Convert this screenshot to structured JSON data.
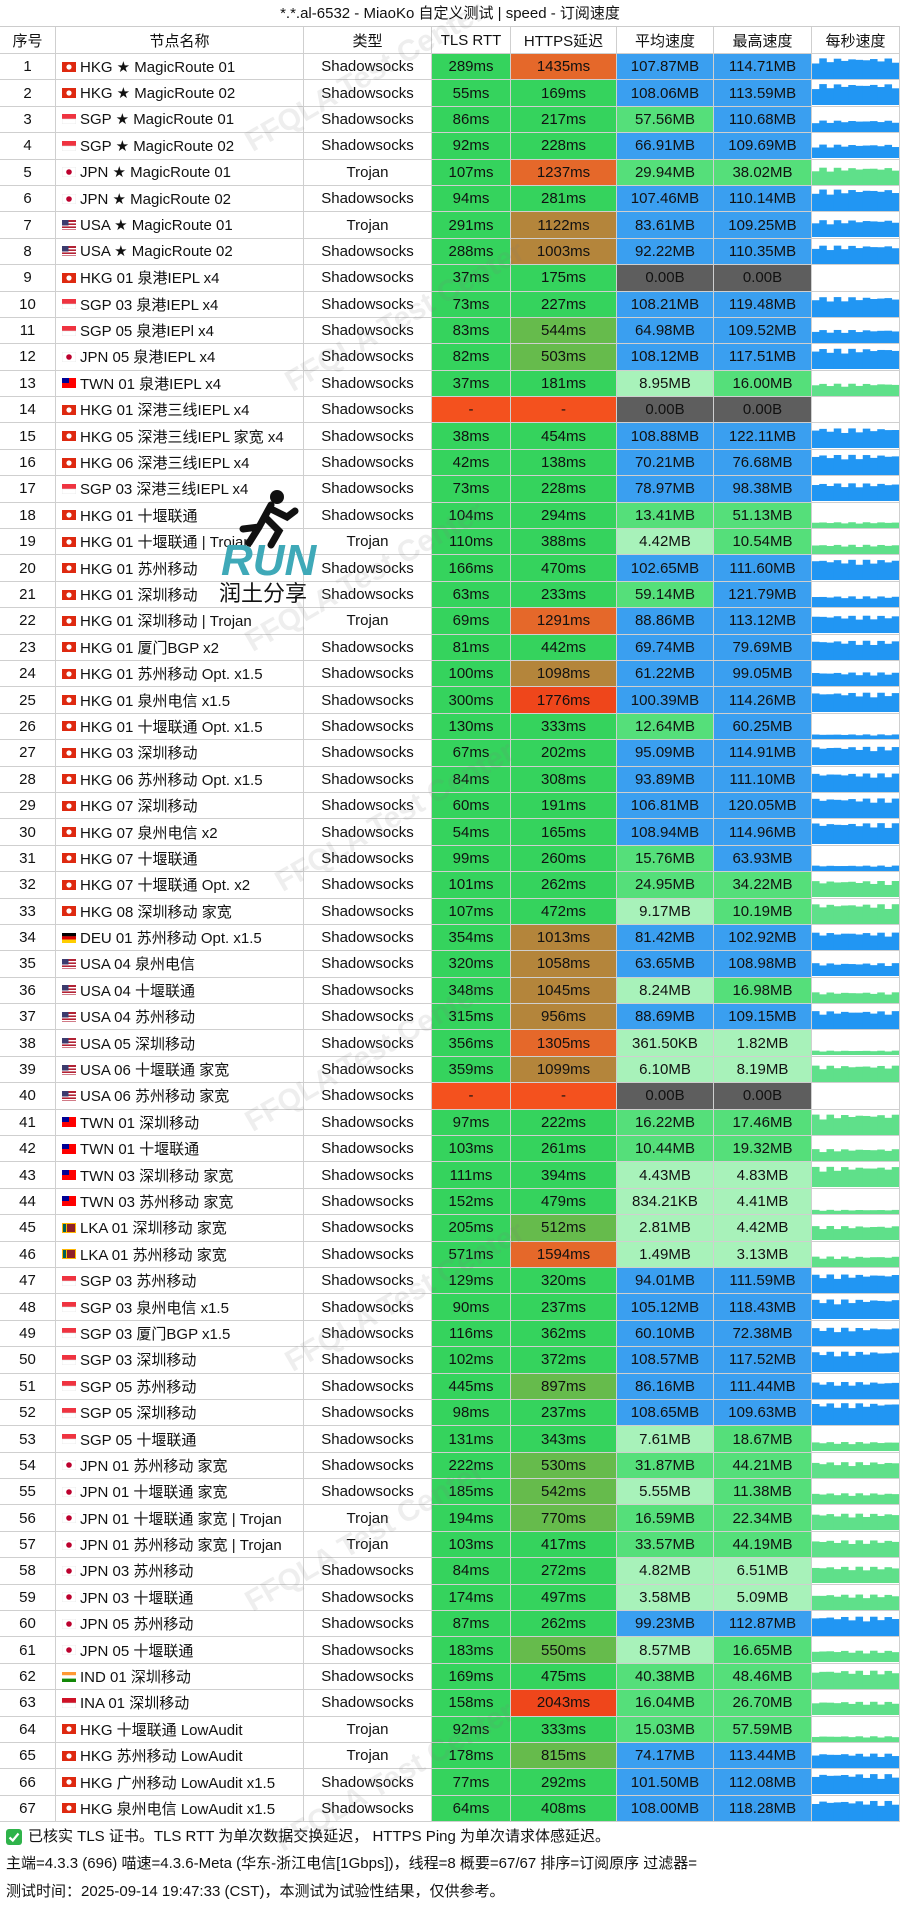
{
  "header": {
    "title": "*.*.al-6532 - MiaoKo 自定义测试 | speed - 订阅速度"
  },
  "table": {
    "columns": [
      "序号",
      "节点名称",
      "类型",
      "TLS RTT",
      "HTTPS延迟",
      "平均速度",
      "最高速度",
      "每秒速度"
    ],
    "rows": [
      [
        "1",
        "HKG ★ MagicRoute 01",
        "Shadowsocks",
        "289ms",
        "1435ms",
        "107.87MB",
        "114.71MB"
      ],
      [
        "2",
        "HKG ★ MagicRoute 02",
        "Shadowsocks",
        "55ms",
        "169ms",
        "108.06MB",
        "113.59MB"
      ],
      [
        "3",
        "SGP ★ MagicRoute 01",
        "Shadowsocks",
        "86ms",
        "217ms",
        "57.56MB",
        "110.68MB"
      ],
      [
        "4",
        "SGP ★ MagicRoute 02",
        "Shadowsocks",
        "92ms",
        "228ms",
        "66.91MB",
        "109.69MB"
      ],
      [
        "5",
        "JPN ★ MagicRoute 01",
        "Trojan",
        "107ms",
        "1237ms",
        "29.94MB",
        "38.02MB"
      ],
      [
        "6",
        "JPN ★ MagicRoute 02",
        "Shadowsocks",
        "94ms",
        "281ms",
        "107.46MB",
        "110.14MB"
      ],
      [
        "7",
        "USA ★ MagicRoute 01",
        "Trojan",
        "291ms",
        "1122ms",
        "83.61MB",
        "109.25MB"
      ],
      [
        "8",
        "USA ★ MagicRoute 02",
        "Shadowsocks",
        "288ms",
        "1003ms",
        "92.22MB",
        "110.35MB"
      ],
      [
        "9",
        "HKG 01 泉港IEPL x4",
        "Shadowsocks",
        "37ms",
        "175ms",
        "0.00B",
        "0.00B"
      ],
      [
        "10",
        "SGP 03 泉港IEPL x4",
        "Shadowsocks",
        "73ms",
        "227ms",
        "108.21MB",
        "119.48MB"
      ],
      [
        "11",
        "SGP 05 泉港IEPl x4",
        "Shadowsocks",
        "83ms",
        "544ms",
        "64.98MB",
        "109.52MB"
      ],
      [
        "12",
        "JPN 05 泉港IEPL x4",
        "Shadowsocks",
        "82ms",
        "503ms",
        "108.12MB",
        "117.51MB"
      ],
      [
        "13",
        "TWN 01 泉港IEPL x4",
        "Shadowsocks",
        "37ms",
        "181ms",
        "8.95MB",
        "16.00MB"
      ],
      [
        "14",
        "HKG 01 深港三线IEPL x4",
        "Shadowsocks",
        "-",
        "-",
        "0.00B",
        "0.00B"
      ],
      [
        "15",
        "HKG 05 深港三线IEPL 家宽 x4",
        "Shadowsocks",
        "38ms",
        "454ms",
        "108.88MB",
        "122.11MB"
      ],
      [
        "16",
        "HKG 06 深港三线IEPL x4",
        "Shadowsocks",
        "42ms",
        "138ms",
        "70.21MB",
        "76.68MB"
      ],
      [
        "17",
        "SGP 03 深港三线IEPL x4",
        "Shadowsocks",
        "73ms",
        "228ms",
        "78.97MB",
        "98.38MB"
      ],
      [
        "18",
        "HKG 01 十堰联通",
        "Shadowsocks",
        "104ms",
        "294ms",
        "13.41MB",
        "51.13MB"
      ],
      [
        "19",
        "HKG 01 十堰联通 | Trojan",
        "Trojan",
        "110ms",
        "388ms",
        "4.42MB",
        "10.54MB"
      ],
      [
        "20",
        "HKG 01 苏州移动",
        "Shadowsocks",
        "166ms",
        "470ms",
        "102.65MB",
        "111.60MB"
      ],
      [
        "21",
        "HKG 01 深圳移动",
        "Shadowsocks",
        "63ms",
        "233ms",
        "59.14MB",
        "121.79MB"
      ],
      [
        "22",
        "HKG 01 深圳移动 | Trojan",
        "Trojan",
        "69ms",
        "1291ms",
        "88.86MB",
        "113.12MB"
      ],
      [
        "23",
        "HKG 01 厦门BGP x2",
        "Shadowsocks",
        "81ms",
        "442ms",
        "69.74MB",
        "79.69MB"
      ],
      [
        "24",
        "HKG 01 苏州移动 Opt. x1.5",
        "Shadowsocks",
        "100ms",
        "1098ms",
        "61.22MB",
        "99.05MB"
      ],
      [
        "25",
        "HKG 01 泉州电信 x1.5",
        "Shadowsocks",
        "300ms",
        "1776ms",
        "100.39MB",
        "114.26MB"
      ],
      [
        "26",
        "HKG 01 十堰联通 Opt. x1.5",
        "Shadowsocks",
        "130ms",
        "333ms",
        "12.64MB",
        "60.25MB"
      ],
      [
        "27",
        "HKG 03 深圳移动",
        "Shadowsocks",
        "67ms",
        "202ms",
        "95.09MB",
        "114.91MB"
      ],
      [
        "28",
        "HKG 06 苏州移动 Opt. x1.5",
        "Shadowsocks",
        "84ms",
        "308ms",
        "93.89MB",
        "111.10MB"
      ],
      [
        "29",
        "HKG 07 深圳移动",
        "Shadowsocks",
        "60ms",
        "191ms",
        "106.81MB",
        "120.05MB"
      ],
      [
        "30",
        "HKG 07 泉州电信 x2",
        "Shadowsocks",
        "54ms",
        "165ms",
        "108.94MB",
        "114.96MB"
      ],
      [
        "31",
        "HKG 07 十堰联通",
        "Shadowsocks",
        "99ms",
        "260ms",
        "15.76MB",
        "63.93MB"
      ],
      [
        "32",
        "HKG 07 十堰联通 Opt. x2",
        "Shadowsocks",
        "101ms",
        "262ms",
        "24.95MB",
        "34.22MB"
      ],
      [
        "33",
        "HKG 08 深圳移动 家宽",
        "Shadowsocks",
        "107ms",
        "472ms",
        "9.17MB",
        "10.19MB"
      ],
      [
        "34",
        "DEU 01 苏州移动 Opt. x1.5",
        "Shadowsocks",
        "354ms",
        "1013ms",
        "81.42MB",
        "102.92MB"
      ],
      [
        "35",
        "USA 04 泉州电信",
        "Shadowsocks",
        "320ms",
        "1058ms",
        "63.65MB",
        "108.98MB"
      ],
      [
        "36",
        "USA 04 十堰联通",
        "Shadowsocks",
        "348ms",
        "1045ms",
        "8.24MB",
        "16.98MB"
      ],
      [
        "37",
        "USA 04 苏州移动",
        "Shadowsocks",
        "315ms",
        "956ms",
        "88.69MB",
        "109.15MB"
      ],
      [
        "38",
        "USA 05 深圳移动",
        "Shadowsocks",
        "356ms",
        "1305ms",
        "361.50KB",
        "1.82MB"
      ],
      [
        "39",
        "USA 06 十堰联通 家宽",
        "Shadowsocks",
        "359ms",
        "1099ms",
        "6.10MB",
        "8.19MB"
      ],
      [
        "40",
        "USA 06 苏州移动 家宽",
        "Shadowsocks",
        "-",
        "-",
        "0.00B",
        "0.00B"
      ],
      [
        "41",
        "TWN 01 深圳移动",
        "Shadowsocks",
        "97ms",
        "222ms",
        "16.22MB",
        "17.46MB"
      ],
      [
        "42",
        "TWN 01 十堰联通",
        "Shadowsocks",
        "103ms",
        "261ms",
        "10.44MB",
        "19.32MB"
      ],
      [
        "43",
        "TWN 03 深圳移动 家宽",
        "Shadowsocks",
        "111ms",
        "394ms",
        "4.43MB",
        "4.83MB"
      ],
      [
        "44",
        "TWN 03 苏州移动 家宽",
        "Shadowsocks",
        "152ms",
        "479ms",
        "834.21KB",
        "4.41MB"
      ],
      [
        "45",
        "LKA 01 深圳移动 家宽",
        "Shadowsocks",
        "205ms",
        "512ms",
        "2.81MB",
        "4.42MB"
      ],
      [
        "46",
        "LKA 01 苏州移动 家宽",
        "Shadowsocks",
        "571ms",
        "1594ms",
        "1.49MB",
        "3.13MB"
      ],
      [
        "47",
        "SGP 03 苏州移动",
        "Shadowsocks",
        "129ms",
        "320ms",
        "94.01MB",
        "111.59MB"
      ],
      [
        "48",
        "SGP 03 泉州电信 x1.5",
        "Shadowsocks",
        "90ms",
        "237ms",
        "105.12MB",
        "118.43MB"
      ],
      [
        "49",
        "SGP 03 厦门BGP x1.5",
        "Shadowsocks",
        "116ms",
        "362ms",
        "60.10MB",
        "72.38MB"
      ],
      [
        "50",
        "SGP 03 深圳移动",
        "Shadowsocks",
        "102ms",
        "372ms",
        "108.57MB",
        "117.52MB"
      ],
      [
        "51",
        "SGP 05 苏州移动",
        "Shadowsocks",
        "445ms",
        "897ms",
        "86.16MB",
        "111.44MB"
      ],
      [
        "52",
        "SGP 05 深圳移动",
        "Shadowsocks",
        "98ms",
        "237ms",
        "108.65MB",
        "109.63MB"
      ],
      [
        "53",
        "SGP 05 十堰联通",
        "Shadowsocks",
        "131ms",
        "343ms",
        "7.61MB",
        "18.67MB"
      ],
      [
        "54",
        "JPN 01 苏州移动 家宽",
        "Shadowsocks",
        "222ms",
        "530ms",
        "31.87MB",
        "44.21MB"
      ],
      [
        "55",
        "JPN 01 十堰联通 家宽",
        "Shadowsocks",
        "185ms",
        "542ms",
        "5.55MB",
        "11.38MB"
      ],
      [
        "56",
        "JPN 01 十堰联通 家宽 | Trojan",
        "Trojan",
        "194ms",
        "770ms",
        "16.59MB",
        "22.34MB"
      ],
      [
        "57",
        "JPN 01 苏州移动 家宽 | Trojan",
        "Trojan",
        "103ms",
        "417ms",
        "33.57MB",
        "44.19MB"
      ],
      [
        "58",
        "JPN 03 苏州移动",
        "Shadowsocks",
        "84ms",
        "272ms",
        "4.82MB",
        "6.51MB"
      ],
      [
        "59",
        "JPN 03 十堰联通",
        "Shadowsocks",
        "174ms",
        "497ms",
        "3.58MB",
        "5.09MB"
      ],
      [
        "60",
        "JPN 05 苏州移动",
        "Shadowsocks",
        "87ms",
        "262ms",
        "99.23MB",
        "112.87MB"
      ],
      [
        "61",
        "JPN 05 十堰联通",
        "Shadowsocks",
        "183ms",
        "550ms",
        "8.57MB",
        "16.65MB"
      ],
      [
        "62",
        "IND 01 深圳移动",
        "Shadowsocks",
        "169ms",
        "475ms",
        "40.38MB",
        "48.46MB"
      ],
      [
        "63",
        "INA 01 深圳移动",
        "Shadowsocks",
        "158ms",
        "2043ms",
        "16.04MB",
        "26.70MB"
      ],
      [
        "64",
        "HKG 十堰联通 LowAudit",
        "Trojan",
        "92ms",
        "333ms",
        "15.03MB",
        "57.59MB"
      ],
      [
        "65",
        "HKG 苏州移动 LowAudit",
        "Trojan",
        "178ms",
        "815ms",
        "74.17MB",
        "113.44MB"
      ],
      [
        "66",
        "HKG 广州移动 LowAudit x1.5",
        "Shadowsocks",
        "77ms",
        "292ms",
        "101.50MB",
        "112.08MB"
      ],
      [
        "67",
        "HKG 泉州电信 LowAudit x1.5",
        "Shadowsocks",
        "64ms",
        "408ms",
        "108.00MB",
        "118.28MB"
      ]
    ]
  },
  "footer": {
    "lines": [
      "已核实 TLS 证书。TLS RTT 为单次数据交换延迟， HTTPS Ping 为单次请求体感延迟。",
      "主端=4.3.3 (696) 喵速=4.3.6-Meta (华东-浙江电信[1Gbps])，线程=8 概要=67/67 排序=订阅原序 过滤器=",
      "测试时间：2025-09-14 19:47:33 (CST)，本测试为试验性结果，仅供参考。"
    ]
  },
  "watermark": {
    "text": "FFQLA Test Center",
    "logo": "RUN",
    "logo_caption": "润土分享"
  }
}
